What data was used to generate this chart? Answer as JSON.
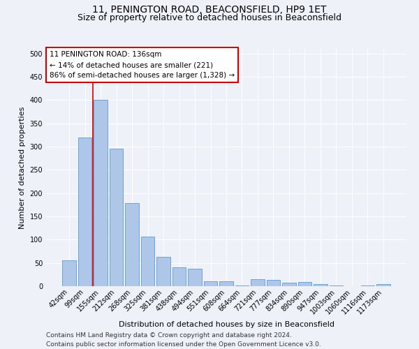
{
  "title": "11, PENINGTON ROAD, BEACONSFIELD, HP9 1ET",
  "subtitle": "Size of property relative to detached houses in Beaconsfield",
  "xlabel": "Distribution of detached houses by size in Beaconsfield",
  "ylabel": "Number of detached properties",
  "categories": [
    "42sqm",
    "99sqm",
    "155sqm",
    "212sqm",
    "268sqm",
    "325sqm",
    "381sqm",
    "438sqm",
    "494sqm",
    "551sqm",
    "608sqm",
    "664sqm",
    "721sqm",
    "777sqm",
    "834sqm",
    "890sqm",
    "947sqm",
    "1003sqm",
    "1060sqm",
    "1116sqm",
    "1173sqm"
  ],
  "values": [
    55,
    320,
    400,
    295,
    178,
    107,
    63,
    40,
    37,
    11,
    11,
    2,
    15,
    14,
    8,
    9,
    4,
    1,
    0,
    2,
    5
  ],
  "bar_color": "#aec6e8",
  "bar_edge_color": "#5b9bd5",
  "annotation_text": "11 PENINGTON ROAD: 136sqm\n← 14% of detached houses are smaller (221)\n86% of semi-detached houses are larger (1,328) →",
  "annotation_box_color": "#ffffff",
  "annotation_box_edge_color": "#cc0000",
  "red_line_color": "#cc0000",
  "footer_line1": "Contains HM Land Registry data © Crown copyright and database right 2024.",
  "footer_line2": "Contains public sector information licensed under the Open Government Licence v3.0.",
  "bg_color": "#eef2f8",
  "grid_color": "#ffffff",
  "ylim": [
    0,
    510
  ],
  "title_fontsize": 10,
  "subtitle_fontsize": 9,
  "axis_label_fontsize": 8,
  "tick_fontsize": 7,
  "annotation_fontsize": 7.5,
  "footer_fontsize": 6.5
}
